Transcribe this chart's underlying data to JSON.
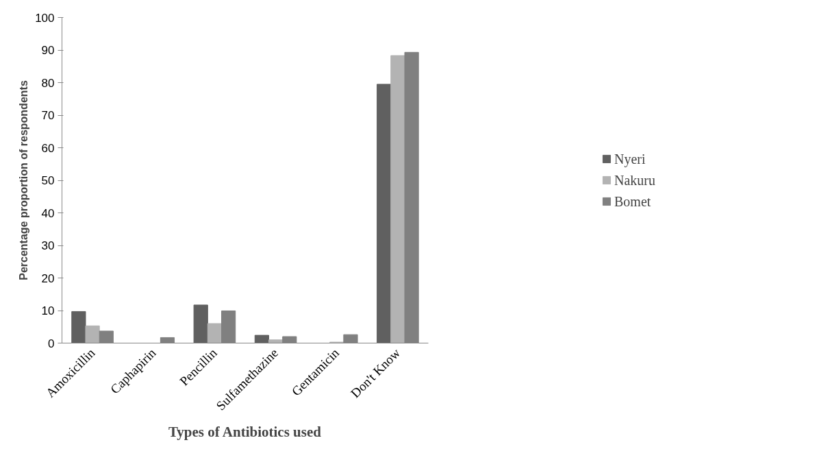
{
  "chart_data": {
    "type": "bar",
    "xlabel": "Types of Antibiotics used",
    "ylabel": "Percentage proportion of respondents",
    "categories": [
      "Amoxicillin",
      "Caphapirin",
      "Pencillin",
      "Sulfamethazine",
      "Gentamicin",
      "Don't Know"
    ],
    "series": [
      {
        "name": "Nyeri",
        "color": "#606060",
        "values": [
          9.7,
          0,
          11.7,
          2.4,
          0,
          79.5
        ]
      },
      {
        "name": "Nakuru",
        "color": "#b3b3b3",
        "values": [
          5.3,
          0,
          6.0,
          1.0,
          0.3,
          88.3
        ]
      },
      {
        "name": "Bomet",
        "color": "#808080",
        "values": [
          3.7,
          1.7,
          9.9,
          2.0,
          2.6,
          89.3
        ]
      }
    ],
    "ylim": [
      0,
      100
    ],
    "yticks": [
      0,
      10,
      20,
      30,
      40,
      50,
      60,
      70,
      80,
      90,
      100
    ],
    "grid": false,
    "legend": "right"
  }
}
